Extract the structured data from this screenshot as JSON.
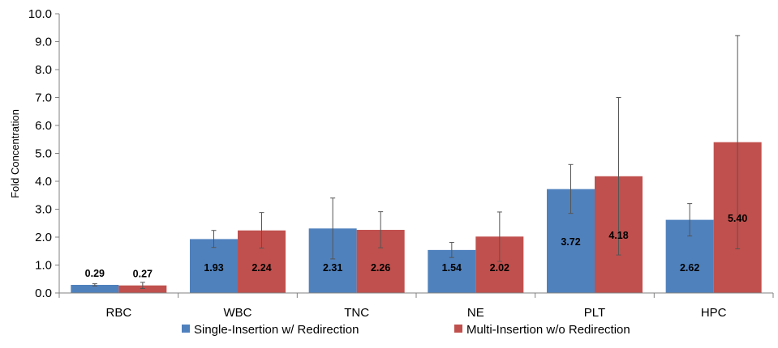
{
  "chart_data": {
    "type": "bar",
    "title": "",
    "xlabel": "",
    "ylabel": "Fold Concentration",
    "ylim": [
      0,
      10
    ],
    "yticks": [
      "0.0",
      "1.0",
      "2.0",
      "3.0",
      "4.0",
      "5.0",
      "6.0",
      "7.0",
      "8.0",
      "9.0",
      "10.0"
    ],
    "categories": [
      "RBC",
      "WBC",
      "TNC",
      "NE",
      "PLT",
      "HPC"
    ],
    "grid": false,
    "legend_position": "bottom",
    "series": [
      {
        "name": "Single-Insertion w/ Redirection",
        "color": "#4f81bd",
        "values": [
          0.29,
          1.93,
          2.31,
          1.54,
          3.72,
          2.62
        ],
        "labels": [
          "0.29",
          "1.93",
          "2.31",
          "1.54",
          "3.72",
          "2.62"
        ],
        "error_low": [
          0.25,
          1.63,
          1.22,
          1.27,
          2.85,
          2.04
        ],
        "error_high": [
          0.33,
          2.24,
          3.4,
          1.81,
          4.6,
          3.2
        ]
      },
      {
        "name": "Multi-Insertion w/o Redirection",
        "color": "#c0504d",
        "values": [
          0.27,
          2.24,
          2.26,
          2.02,
          4.18,
          5.4
        ],
        "labels": [
          "0.27",
          "2.24",
          "2.26",
          "2.02",
          "4.18",
          "5.40"
        ],
        "error_low": [
          0.16,
          1.61,
          1.62,
          1.13,
          1.36,
          1.58
        ],
        "error_high": [
          0.38,
          2.88,
          2.91,
          2.9,
          7.0,
          9.22
        ]
      }
    ]
  }
}
